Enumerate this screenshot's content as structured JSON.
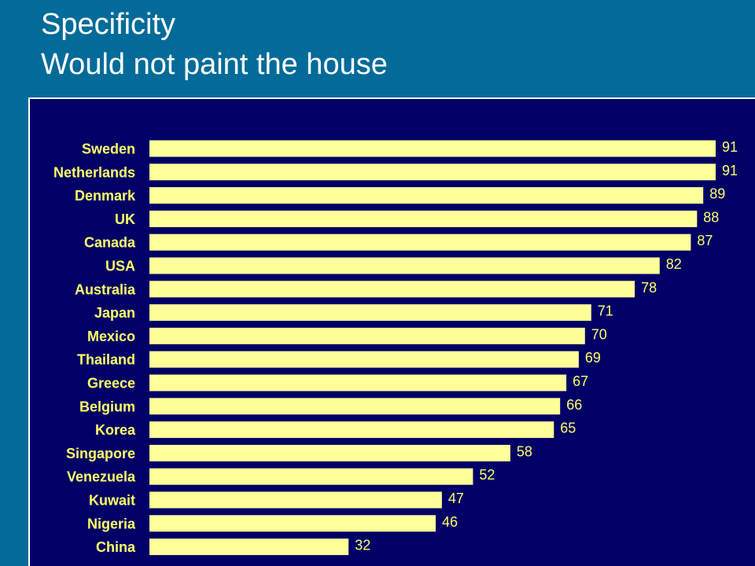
{
  "slide": {
    "title_line1": "Specificity",
    "title_line2": "Would not paint the house"
  },
  "colors": {
    "slide_background": "#036b99",
    "plot_background": "#000066",
    "bar_fill": "#ffff99",
    "category_text": "#ffff66",
    "value_text": "#ffff66",
    "title_text": "#ffffff"
  },
  "chart_data": {
    "type": "bar",
    "orientation": "horizontal",
    "title": "",
    "xlabel": "",
    "ylabel": "",
    "xlim": [
      0,
      91
    ],
    "grid": false,
    "legend": "none",
    "categories": [
      "Sweden",
      "Netherlands",
      "Denmark",
      "UK",
      "Canada",
      "USA",
      "Australia",
      "Japan",
      "Mexico",
      "Thailand",
      "Greece",
      "Belgium",
      "Korea",
      "Singapore",
      "Venezuela",
      "Kuwait",
      "Nigeria",
      "China"
    ],
    "values": [
      91,
      91,
      89,
      88,
      87,
      82,
      78,
      71,
      70,
      69,
      67,
      66,
      65,
      58,
      52,
      47,
      46,
      32
    ]
  }
}
